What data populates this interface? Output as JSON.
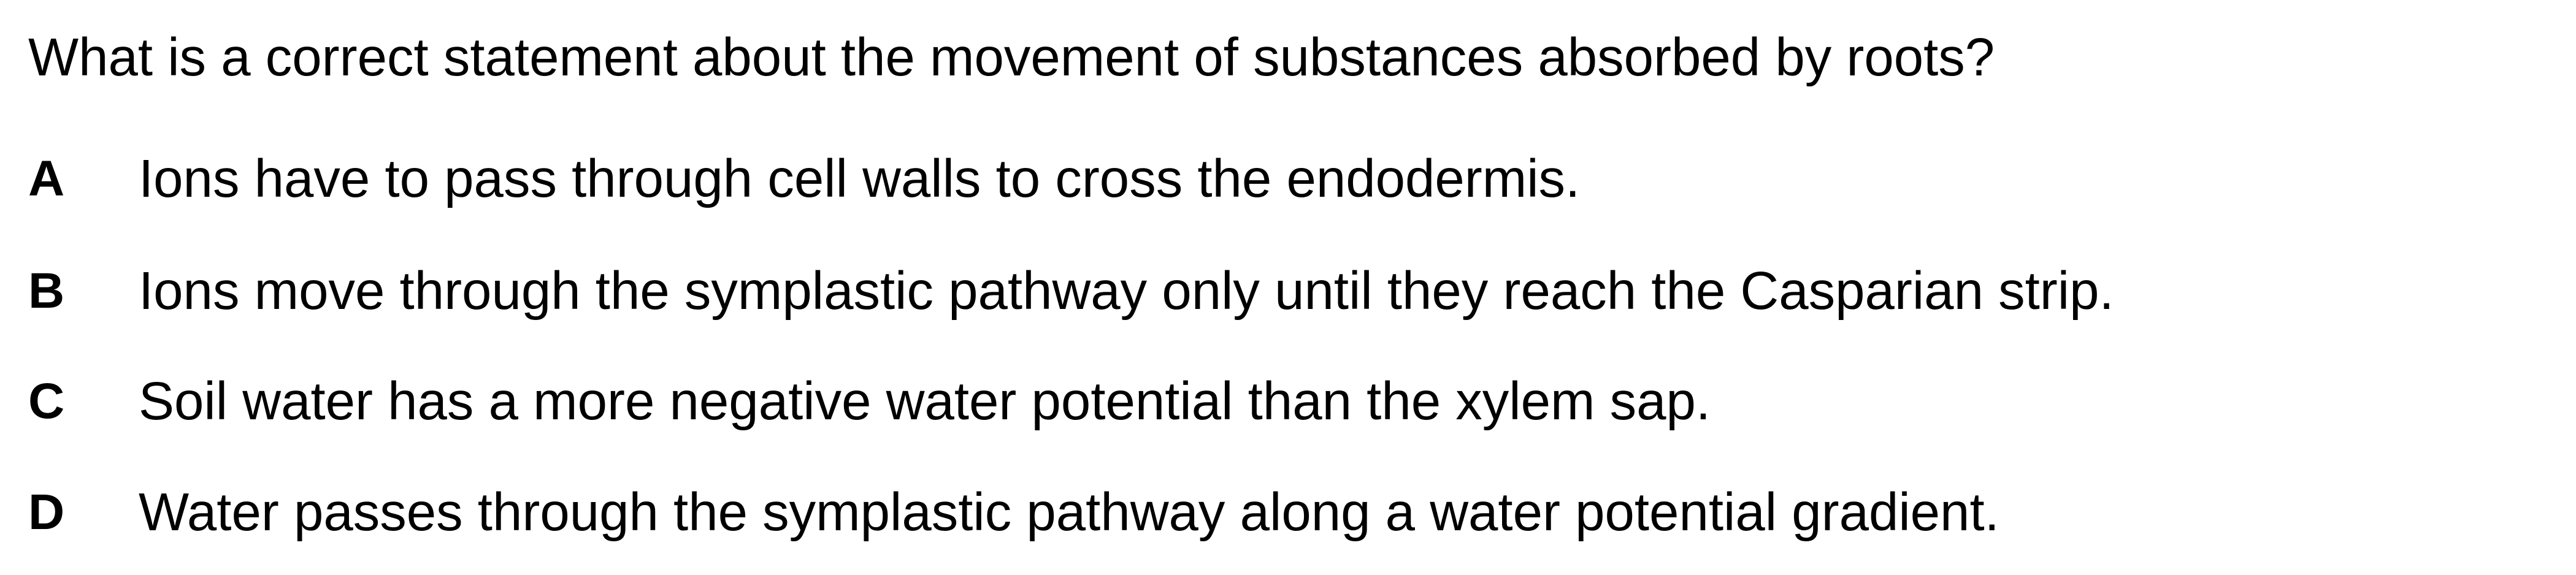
{
  "question": "What is a correct statement about the movement of substances absorbed by roots?",
  "options": [
    {
      "letter": "A",
      "text": "Ions have to pass through cell walls to cross the endodermis."
    },
    {
      "letter": "B",
      "text": "Ions move through the symplastic pathway only until they reach the Casparian strip."
    },
    {
      "letter": "C",
      "text": "Soil water has a more negative water potential than the xylem sap."
    },
    {
      "letter": "D",
      "text": "Water passes through the symplastic pathway along a water potential gradient."
    }
  ]
}
